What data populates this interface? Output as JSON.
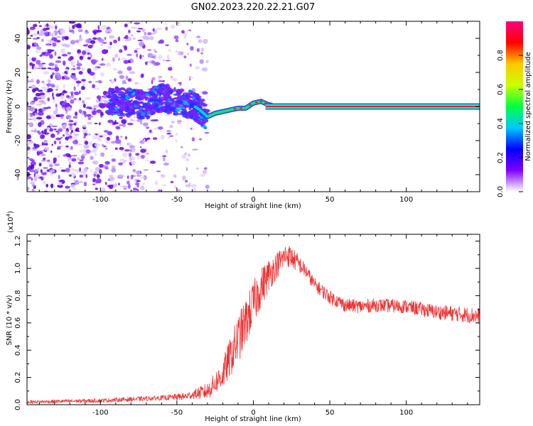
{
  "title": "GN02.2023.220.22.21.G07",
  "chart_data": [
    {
      "type": "heatmap",
      "xlabel": "Height of straight line (km)",
      "ylabel": "Frequency (Hz)",
      "xlim": [
        -148,
        148
      ],
      "ylim": [
        -50,
        50
      ],
      "xticks": [
        -100,
        -50,
        0,
        50,
        100
      ],
      "xtick_labels": [
        "-100",
        "-50",
        "0",
        "50",
        "100"
      ],
      "yticks": [
        -40,
        -20,
        0,
        20,
        40
      ],
      "ytick_labels": [
        "-40",
        "-20",
        "0",
        "20",
        "40"
      ],
      "colorbar": {
        "label": "Normalized spectral amplitude",
        "range": [
          0.0,
          1.0
        ],
        "ticks": [
          0.0,
          0.2,
          0.4,
          0.6,
          0.8
        ],
        "tick_labels": [
          "0.0",
          "0.2",
          "0.4",
          "0.6",
          "0.8"
        ],
        "colormap": [
          "#ffffff",
          "#8000ff",
          "#0000ff",
          "#00c8ff",
          "#00ff40",
          "#c8ff00",
          "#ffc800",
          "#ff0000",
          "#ff0080"
        ]
      },
      "ridge": {
        "x": [
          -90,
          -80,
          -70,
          -60,
          -50,
          -40,
          -35,
          -30,
          -25,
          -20,
          -15,
          -10,
          -5,
          0,
          5,
          10,
          20,
          50,
          100,
          148
        ],
        "y": [
          3,
          2,
          1,
          5,
          3,
          1,
          -2,
          -6,
          -4,
          -3,
          -2,
          -1,
          -1,
          2,
          3,
          1,
          0,
          0,
          0,
          0
        ]
      }
    },
    {
      "type": "line",
      "xlabel": "Height of straight line (km)",
      "ylabel": "SNR (10 * v/v)",
      "ylabel_multiplier": "(x10",
      "ylabel_exponent": "4",
      "ylabel_close": ")",
      "xlim": [
        -148,
        148
      ],
      "ylim": [
        0,
        1.25
      ],
      "xticks": [
        -100,
        -50,
        0,
        50,
        100
      ],
      "xtick_labels": [
        "-100",
        "-50",
        "0",
        "50",
        "100"
      ],
      "yticks": [
        0.0,
        0.2,
        0.4,
        0.6,
        0.8,
        1.0,
        1.2
      ],
      "ytick_labels": [
        "0.0",
        "0.2",
        "0.4",
        "0.6",
        "0.8",
        "1.0",
        "1.2"
      ],
      "line_color": "#ee3333",
      "envelope": {
        "x": [
          -148,
          -100,
          -60,
          -45,
          -30,
          -20,
          -10,
          -5,
          0,
          5,
          10,
          15,
          20,
          22,
          25,
          30,
          35,
          40,
          50,
          60,
          70,
          80,
          100,
          120,
          148
        ],
        "y": [
          0.02,
          0.03,
          0.05,
          0.06,
          0.1,
          0.22,
          0.48,
          0.6,
          0.74,
          0.86,
          0.95,
          1.02,
          1.08,
          1.1,
          1.08,
          1.03,
          0.97,
          0.88,
          0.79,
          0.73,
          0.72,
          0.73,
          0.72,
          0.68,
          0.65
        ]
      },
      "noise_amplitude": {
        "x": [
          -148,
          -60,
          -40,
          -25,
          -10,
          0,
          15,
          22,
          35,
          50,
          100,
          148
        ],
        "y": [
          0.012,
          0.018,
          0.03,
          0.08,
          0.18,
          0.17,
          0.1,
          0.09,
          0.05,
          0.05,
          0.05,
          0.06
        ]
      }
    }
  ]
}
